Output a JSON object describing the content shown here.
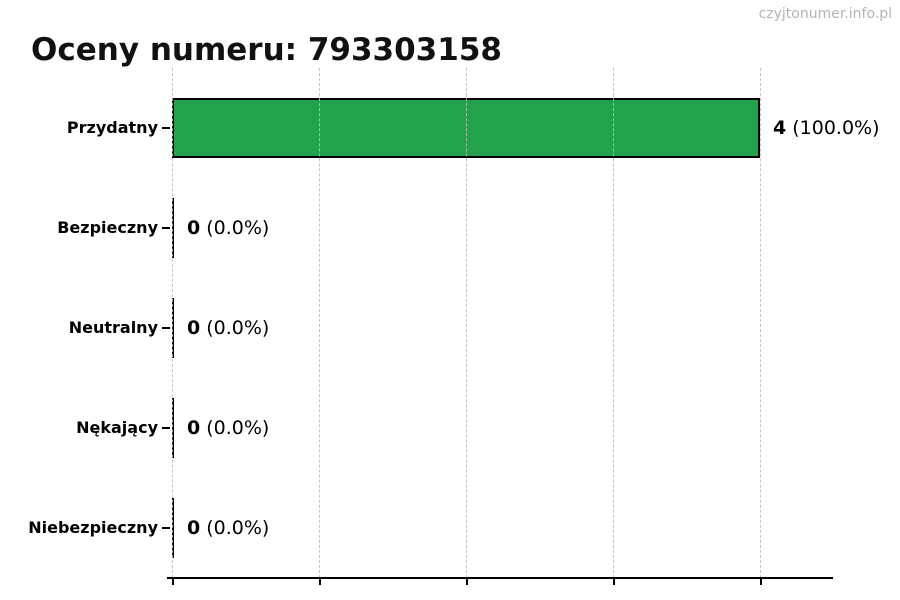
{
  "header": {
    "title": "Oceny numeru: 793303158",
    "watermark": "czyjtonumer.info.pl"
  },
  "chart_data": {
    "type": "bar",
    "orientation": "horizontal",
    "title": "Oceny numeru: 793303158",
    "categories": [
      "Przydatny",
      "Bezpieczny",
      "Neutralny",
      "Nękający",
      "Niebezpieczny"
    ],
    "values": [
      4,
      0,
      0,
      0,
      0
    ],
    "percent_labels": [
      "(100.0%)",
      "(0.0%)",
      "(0.0%)",
      "(0.0%)",
      "(0.0%)"
    ],
    "value_label_texts": [
      "4 (100.0%)",
      "0 (0.0%)",
      "0 (0.0%)",
      "0 (0.0%)",
      "0 (0.0%)"
    ],
    "xlabel": "",
    "ylabel": "",
    "xlim": [
      0,
      4.4
    ],
    "xticks": [
      0,
      1,
      2,
      3,
      4
    ],
    "grid": {
      "vertical": true,
      "style": "dashed",
      "color": "#cccccc"
    },
    "legend": "none",
    "bar_color": "#23a24d",
    "bar_border_color": "#000000",
    "title_color": "#111111",
    "watermark_color": "#b4b4b4"
  }
}
